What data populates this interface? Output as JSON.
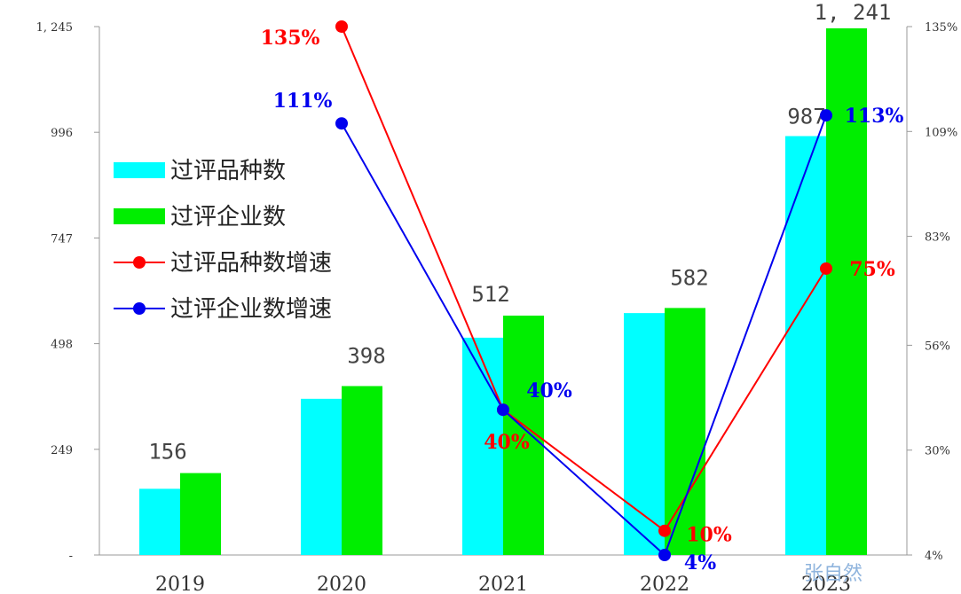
{
  "chart_data": {
    "type": "bar",
    "categories": [
      "2019",
      "2020",
      "2021",
      "2022",
      "2023"
    ],
    "series": [
      {
        "name": "过评品种数",
        "values": [
          156,
          368,
          512,
          570,
          987
        ],
        "color": "#00ffff"
      },
      {
        "name": "过评企业数",
        "values": [
          193,
          398,
          564,
          582,
          1241
        ],
        "color": "#00ee00"
      }
    ],
    "line_series": [
      {
        "name": "过评品种数增速",
        "values": [
          null,
          135,
          40,
          10,
          75
        ],
        "color": "#ff0000"
      },
      {
        "name": "过评企业数增速",
        "values": [
          null,
          111,
          40,
          4,
          113
        ],
        "color": "#0000ee"
      }
    ],
    "bar_labels": [
      {
        "label": "156",
        "category": "2019"
      },
      {
        "label": "398",
        "category": "2020"
      },
      {
        "label": "512",
        "category": "2021"
      },
      {
        "label": "582",
        "category": "2022"
      },
      {
        "label": "987",
        "category": "2023"
      },
      {
        "label": "1, 241",
        "category": "2023"
      }
    ],
    "point_labels": [
      {
        "label": "135%",
        "series": "过评品种数增速",
        "category": "2020"
      },
      {
        "label": "111%",
        "series": "过评企业数增速",
        "category": "2020"
      },
      {
        "label": "40%",
        "series": "过评企业数增速",
        "category": "2021"
      },
      {
        "label": "40%",
        "series": "过评品种数增速",
        "category": "2021"
      },
      {
        "label": "10%",
        "series": "过评品种数增速",
        "category": "2022"
      },
      {
        "label": "4%",
        "series": "过评企业数增速",
        "category": "2022"
      },
      {
        "label": "75%",
        "series": "过评品种数增速",
        "category": "2023"
      },
      {
        "label": "113%",
        "series": "过评企业数增速",
        "category": "2023"
      }
    ],
    "y_left": {
      "ylim": [
        0,
        1245
      ],
      "tick_values": [
        0,
        249,
        498,
        747,
        996,
        1245
      ],
      "tick_labels": [
        "-",
        "249",
        "498",
        "747",
        "996",
        "1, 245"
      ]
    },
    "y_right": {
      "ylim": [
        4,
        135
      ],
      "tick_values": [
        4,
        30,
        56,
        83,
        109,
        135
      ],
      "tick_labels": [
        "4%",
        "30%",
        "56%",
        "83%",
        "109%",
        "135%"
      ]
    },
    "legend_position": "left",
    "grid": false
  },
  "watermark": "张自然"
}
